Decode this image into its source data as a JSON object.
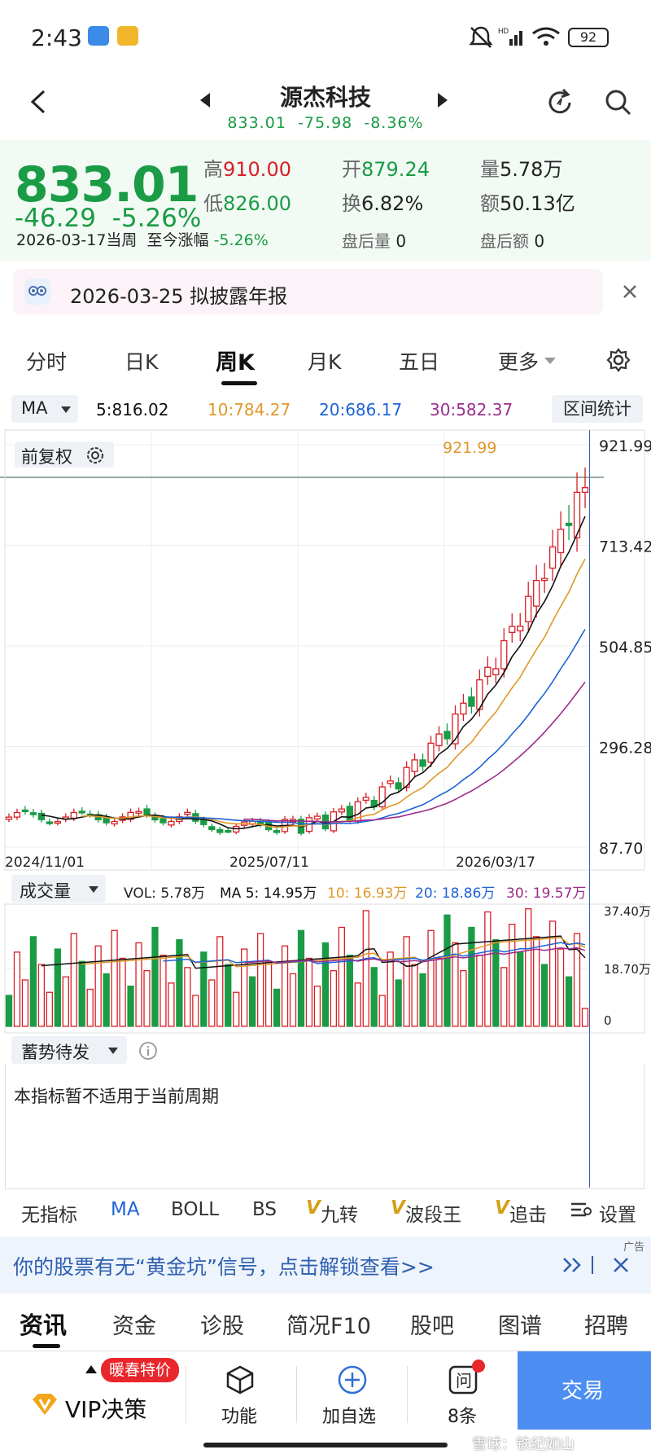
{
  "status": {
    "time": "2:43",
    "battery": "92"
  },
  "nav": {
    "name": "源杰科技",
    "price": "833.01",
    "change": "-75.98",
    "pct": "-8.36%"
  },
  "quote": {
    "price": "833.01",
    "change": "-46.29",
    "pct": "-5.26%",
    "period": "2026-03-17当周",
    "since_label": "至今涨幅",
    "since_val": "-5.26%",
    "high_k": "高",
    "high": "910.00",
    "open_k": "开",
    "open": "879.24",
    "vol_k": "量",
    "vol": "5.78万",
    "low_k": "低",
    "low": "826.00",
    "turn_k": "换",
    "turn": "6.82%",
    "amt_k": "额",
    "amt": "50.13亿",
    "after_vol_k": "盘后量",
    "after_vol": "0",
    "after_amt_k": "盘后额",
    "after_amt": "0"
  },
  "notice": {
    "text": "2026-03-25 拟披露年报"
  },
  "tabs": [
    "分时",
    "日K",
    "周K",
    "月K",
    "五日",
    "更多"
  ],
  "ma_row": {
    "sel": "MA",
    "ma5": "5:816.02",
    "ma10": "10:784.27",
    "ma20": "20:686.17",
    "ma30": "30:582.37",
    "stats": "区间统计"
  },
  "kchart": {
    "adjust": "前复权",
    "high_label": "921.99",
    "ticks": [
      "921.99",
      "713.42",
      "504.85",
      "296.28",
      "87.70"
    ],
    "low_label": "87.70",
    "dates": [
      "2024/11/01",
      "2025/07/11",
      "2026/03/17"
    ]
  },
  "vol_row": {
    "sel": "成交量",
    "vol": "VOL: 5.78万",
    "ma5": "MA 5: 14.95万",
    "ma10": "10: 16.93万",
    "ma20": "20: 18.86万",
    "ma30": "30: 19.57万",
    "ticks": [
      "37.40万",
      "18.70万",
      "0"
    ]
  },
  "xushi": {
    "sel": "蓄势待发",
    "msg": "本指标暂不适用于当前周期"
  },
  "indicators": {
    "none": "无指标",
    "ma": "MA",
    "boll": "BOLL",
    "bs": "BS",
    "jiu": "九转",
    "bo": "波段王",
    "zhui": "追击",
    "settings": "设置"
  },
  "ad": {
    "tag": "广告",
    "text": "你的股票有无“黄金坑”信号，点击解锁查看>>"
  },
  "bottom_tabs": [
    "资讯",
    "资金",
    "诊股",
    "简况F10",
    "股吧",
    "图谱",
    "招聘"
  ],
  "footer": {
    "promo": "暖春特价",
    "vip": "VIP决策",
    "func": "功能",
    "add": "加自选",
    "ask": "8条",
    "trade": "交易",
    "watermark": "雪球：铁纪如山"
  },
  "colors": {
    "up": "#d81f26",
    "down": "#1a9b45",
    "ma5": "#111111",
    "ma10": "#e0982a",
    "ma20": "#1d63d6",
    "ma30": "#9b2d8b"
  }
}
